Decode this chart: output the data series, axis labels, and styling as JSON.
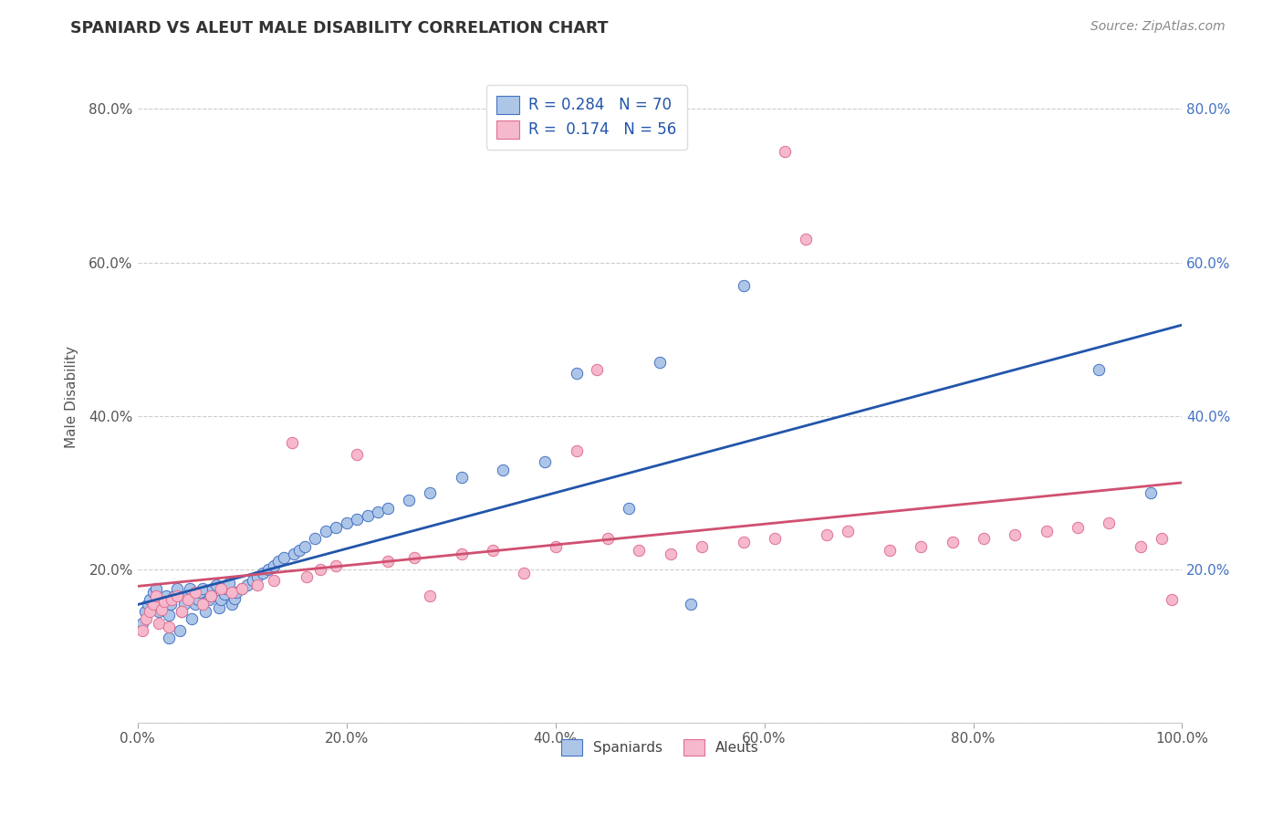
{
  "title": "SPANIARD VS ALEUT MALE DISABILITY CORRELATION CHART",
  "source_text": "Source: ZipAtlas.com",
  "ylabel": "Male Disability",
  "xlim": [
    0.0,
    1.0
  ],
  "ylim": [
    0.0,
    0.85
  ],
  "x_ticks": [
    0.0,
    0.2,
    0.4,
    0.6,
    0.8,
    1.0
  ],
  "x_tick_labels": [
    "0.0%",
    "20.0%",
    "40.0%",
    "60.0%",
    "80.0%",
    "100.0%"
  ],
  "y_ticks": [
    0.0,
    0.2,
    0.4,
    0.6,
    0.8
  ],
  "y_tick_labels": [
    "",
    "20.0%",
    "40.0%",
    "60.0%",
    "80.0%"
  ],
  "spaniard_color": "#adc6e8",
  "aleut_color": "#f5b8cc",
  "spaniard_edge_color": "#4472c4",
  "aleut_edge_color": "#e07090",
  "spaniard_line_color": "#2255aa",
  "aleut_line_color": "#d05070",
  "r_spaniard": 0.284,
  "n_spaniard": 70,
  "r_aleut": 0.174,
  "n_aleut": 56,
  "grid_color": "#cccccc",
  "background_color": "#ffffff",
  "spaniard_x": [
    0.005,
    0.007,
    0.01,
    0.012,
    0.015,
    0.018,
    0.02,
    0.022,
    0.025,
    0.027,
    0.03,
    0.03,
    0.032,
    0.035,
    0.038,
    0.04,
    0.042,
    0.045,
    0.048,
    0.05,
    0.052,
    0.055,
    0.058,
    0.06,
    0.062,
    0.065,
    0.068,
    0.07,
    0.072,
    0.075,
    0.078,
    0.08,
    0.083,
    0.085,
    0.088,
    0.09,
    0.093,
    0.095,
    0.1,
    0.105,
    0.11,
    0.115,
    0.12,
    0.125,
    0.13,
    0.135,
    0.14,
    0.15,
    0.155,
    0.16,
    0.17,
    0.18,
    0.19,
    0.2,
    0.21,
    0.22,
    0.23,
    0.24,
    0.26,
    0.28,
    0.31,
    0.35,
    0.39,
    0.42,
    0.47,
    0.5,
    0.53,
    0.58,
    0.92,
    0.97
  ],
  "spaniard_y": [
    0.13,
    0.145,
    0.155,
    0.16,
    0.17,
    0.175,
    0.145,
    0.155,
    0.16,
    0.165,
    0.11,
    0.14,
    0.155,
    0.165,
    0.175,
    0.12,
    0.145,
    0.155,
    0.165,
    0.175,
    0.135,
    0.155,
    0.16,
    0.17,
    0.175,
    0.145,
    0.16,
    0.165,
    0.175,
    0.18,
    0.15,
    0.16,
    0.168,
    0.175,
    0.182,
    0.155,
    0.162,
    0.17,
    0.175,
    0.18,
    0.185,
    0.19,
    0.195,
    0.2,
    0.205,
    0.21,
    0.215,
    0.22,
    0.225,
    0.23,
    0.24,
    0.25,
    0.255,
    0.26,
    0.265,
    0.27,
    0.275,
    0.28,
    0.29,
    0.3,
    0.32,
    0.33,
    0.34,
    0.455,
    0.28,
    0.47,
    0.155,
    0.57,
    0.46,
    0.3
  ],
  "aleut_x": [
    0.005,
    0.008,
    0.012,
    0.015,
    0.018,
    0.02,
    0.023,
    0.026,
    0.03,
    0.033,
    0.038,
    0.042,
    0.048,
    0.055,
    0.062,
    0.07,
    0.08,
    0.09,
    0.1,
    0.115,
    0.13,
    0.148,
    0.162,
    0.175,
    0.19,
    0.21,
    0.24,
    0.265,
    0.28,
    0.31,
    0.34,
    0.37,
    0.4,
    0.42,
    0.45,
    0.48,
    0.51,
    0.54,
    0.58,
    0.61,
    0.64,
    0.66,
    0.68,
    0.72,
    0.75,
    0.78,
    0.81,
    0.84,
    0.87,
    0.9,
    0.93,
    0.96,
    0.98,
    0.99,
    0.44,
    0.62
  ],
  "aleut_y": [
    0.12,
    0.135,
    0.145,
    0.155,
    0.165,
    0.13,
    0.148,
    0.158,
    0.125,
    0.16,
    0.165,
    0.145,
    0.16,
    0.17,
    0.155,
    0.165,
    0.175,
    0.17,
    0.175,
    0.18,
    0.185,
    0.365,
    0.19,
    0.2,
    0.205,
    0.35,
    0.21,
    0.215,
    0.165,
    0.22,
    0.225,
    0.195,
    0.23,
    0.355,
    0.24,
    0.225,
    0.22,
    0.23,
    0.235,
    0.24,
    0.63,
    0.245,
    0.25,
    0.225,
    0.23,
    0.235,
    0.24,
    0.245,
    0.25,
    0.255,
    0.26,
    0.23,
    0.24,
    0.16,
    0.46,
    0.745
  ]
}
